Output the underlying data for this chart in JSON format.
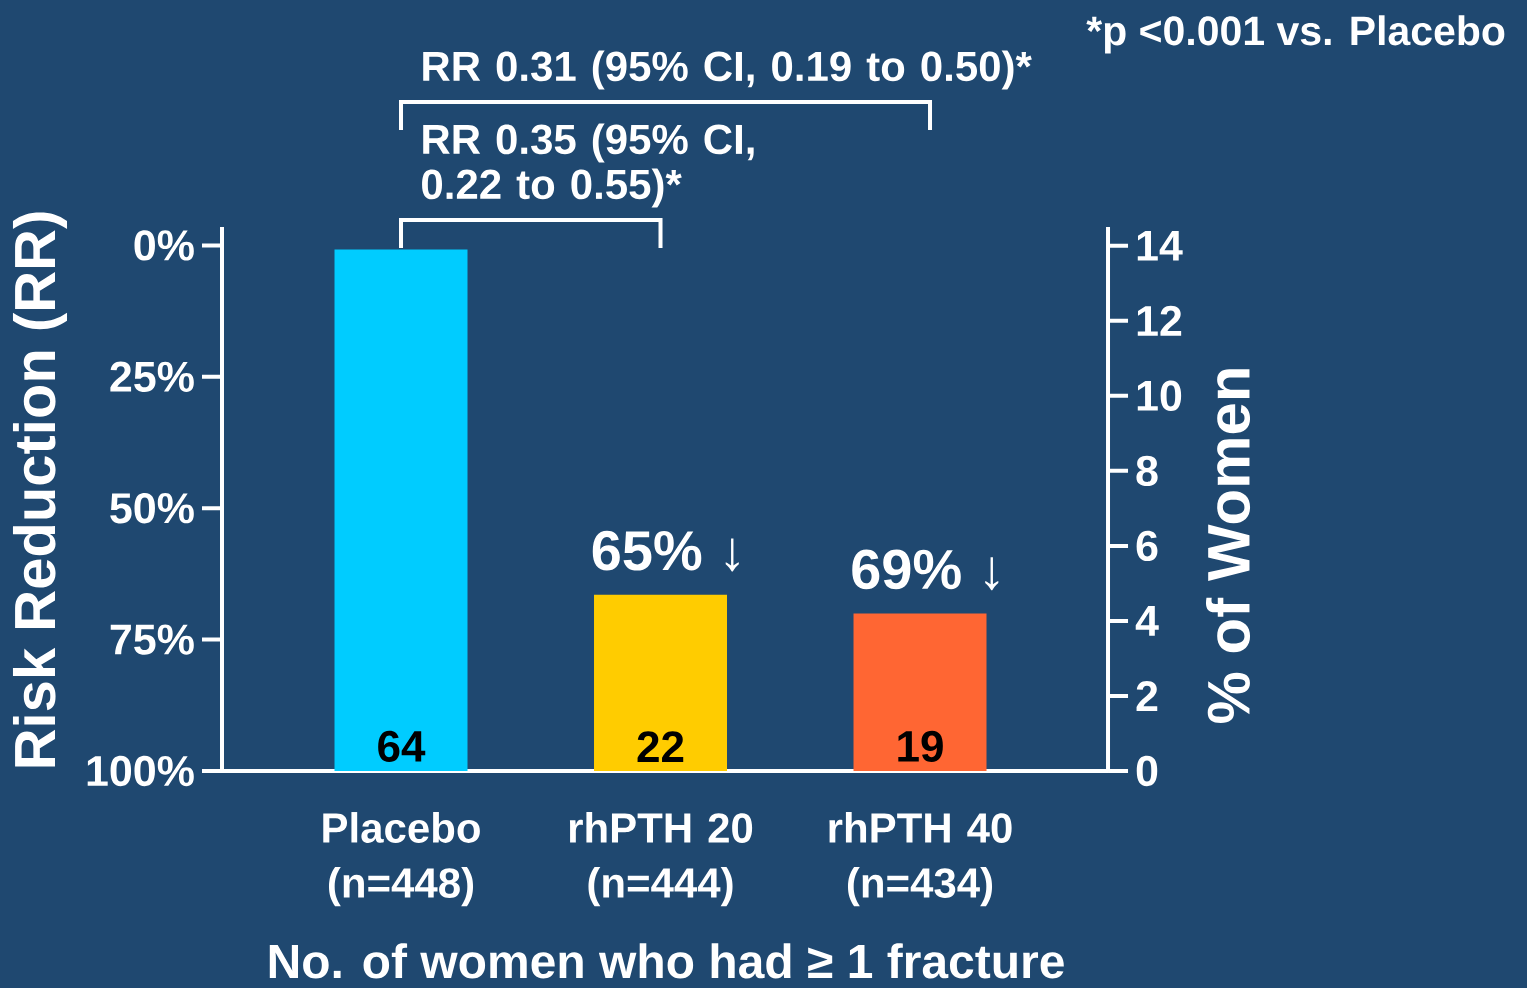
{
  "chart_data": {
    "type": "bar",
    "categories": [
      "Placebo (n=448)",
      "rhPTH 20 (n=444)",
      "rhPTH 40 (n=434)"
    ],
    "series": [
      {
        "values": [
          13.9,
          4.7,
          4.2
        ],
        "colors": [
          "#00ccff",
          "#ffcc00",
          "#ff6633"
        ],
        "axis": "y2"
      }
    ],
    "xlabel": "No. of women who had ≥ 1 fracture",
    "ylabel": "Risk Reduction (RR)",
    "y2label": "% of Women",
    "ylim": [
      100,
      -3.5
    ],
    "yticks": [
      {
        "value": 0,
        "label": "0%"
      },
      {
        "value": 25,
        "label": "25%"
      },
      {
        "value": 50,
        "label": "50%"
      },
      {
        "value": 75,
        "label": "75%"
      },
      {
        "value": 100,
        "label": "100%"
      }
    ],
    "y2lim": [
      0,
      14.5
    ],
    "y2ticks": [
      0,
      2,
      4,
      6,
      8,
      10,
      12,
      14
    ],
    "annotations": [
      "*p <0.001 vs. Placebo",
      "RR 0.31 (95% CI, 0.19 to 0.50)*",
      "RR 0.35 (95% CI, 0.22 to 0.55)*",
      "65% ↓",
      "69% ↓",
      "64",
      "22",
      "19"
    ]
  }
}
